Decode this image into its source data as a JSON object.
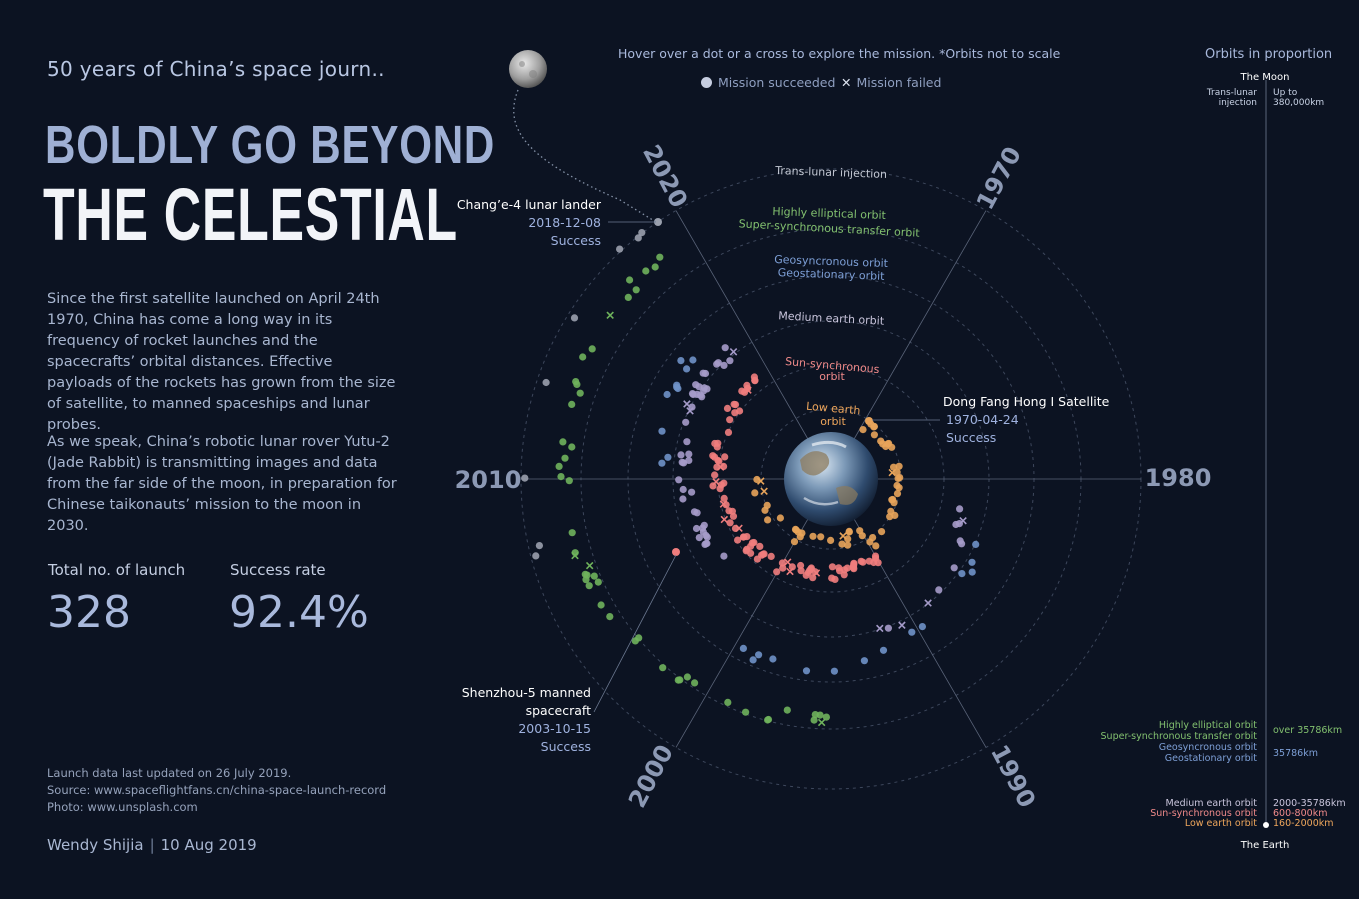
{
  "header": {
    "subtitle": "50 years of China’s space journ..",
    "title_line1": "BOLDLY GO BEYOND",
    "title_line2": "THE CELESTIAL"
  },
  "intro": {
    "para1": "Since the first satellite launched on April 24th 1970, China has come a long way in its frequency of rocket launches and the spacecrafts’ orbital distances. Effective payloads of the rockets has grown from the size of satellite, to manned spaceships and lunar probes.",
    "para2": "As we speak, China’s robotic lunar rover Yutu-2 (Jade Rabbit) is transmitting images and data from the far side of the moon, in preparation for Chinese taikonauts’ mission to the moon in 2030."
  },
  "stats": {
    "launch_label": "Total no. of launch",
    "launch_value": "328",
    "rate_label": "Success rate",
    "rate_value": "92.4%"
  },
  "footer": {
    "updated": "Launch data last updated on 26 July 2019.",
    "source": "Source:  www.spaceflightfans.cn/china-space-launch-record",
    "photo": "Photo: www.unsplash.com",
    "author": "Wendy Shijia",
    "sep": "|",
    "date": "10 Aug 2019"
  },
  "top": {
    "hover_note": "Hover over a dot or a cross to explore the mission. *Orbits not to scale",
    "legend_success": "Mission succeeded",
    "legend_failed": "Mission failed"
  },
  "colors": {
    "background": "#0c1322",
    "low_earth": "#e8a45a",
    "sun_synchronous": "#ef7d7d",
    "medium_earth": "#a59bc9",
    "geosynchronous": "#6f92c8",
    "highly_elliptical": "#6fb35c",
    "trans_lunar": "#9aa0ad"
  },
  "chart_data": {
    "type": "scatter",
    "layout": "radial spiral (clockwise by year, distance = orbit type)",
    "year_labels": [
      "1970",
      "1980",
      "1990",
      "2000",
      "2010",
      "2020"
    ],
    "orbit_labels": [
      {
        "name": "Trans-lunar injection",
        "color": "#c3c8d3"
      },
      {
        "name": "Highly elliptical orbit",
        "color": "#82c06f"
      },
      {
        "name": "Super-synchronous transfer orbit",
        "color": "#82c06f"
      },
      {
        "name": "Geosyncronous orbit",
        "color": "#7d9fd6"
      },
      {
        "name": "Geostationary orbit",
        "color": "#7d9fd6"
      },
      {
        "name": "Medium earth orbit",
        "color": "#c9c5dc"
      },
      {
        "name": "Sun-synchronous",
        "color": "#f08a8a"
      },
      {
        "name": "orbit",
        "color": "#f08a8a"
      },
      {
        "name": "Low earth",
        "color": "#eea65c"
      },
      {
        "name": "orbit",
        "color": "#eea65c"
      }
    ],
    "orbit_order": [
      "low_earth",
      "sun_synchronous",
      "medium_earth",
      "geosynchronous",
      "highly_elliptical",
      "trans_lunar"
    ],
    "annotations": [
      {
        "name": "Dong Fang Hong I Satellite",
        "date": "1970-04-24",
        "status": "Success"
      },
      {
        "name": "Chang’e-4  lunar lander",
        "date": "2018-12-08",
        "status": "Success"
      },
      {
        "name_line1": "Shenzhou-5 manned",
        "name_line2": "spacecraft",
        "date": "2003-10-15",
        "status": "Success"
      }
    ],
    "total_launches": 328,
    "success_rate_percent": 92.4
  },
  "proportion": {
    "title": "Orbits in proportion",
    "moon": "The Moon",
    "earth": "The Earth",
    "tli_line1": "Trans-lunar",
    "tli_line2": "injection",
    "tli_dist_line1": "Up to",
    "tli_dist_line2": "380,000km",
    "heo": "Highly elliptical orbit",
    "sso_transfer": "Super-synchronous transfer orbit",
    "heo_dist": "over 35786km",
    "geo1": "Geosyncronous orbit",
    "geo2": "Geostationary orbit",
    "geo_dist": "35786km",
    "meo": "Medium earth orbit",
    "meo_dist": "2000-35786km",
    "sso": "Sun-synchronous orbit",
    "sso_dist": "600-800km",
    "leo": "Low earth orbit",
    "leo_dist": "160-2000km"
  }
}
